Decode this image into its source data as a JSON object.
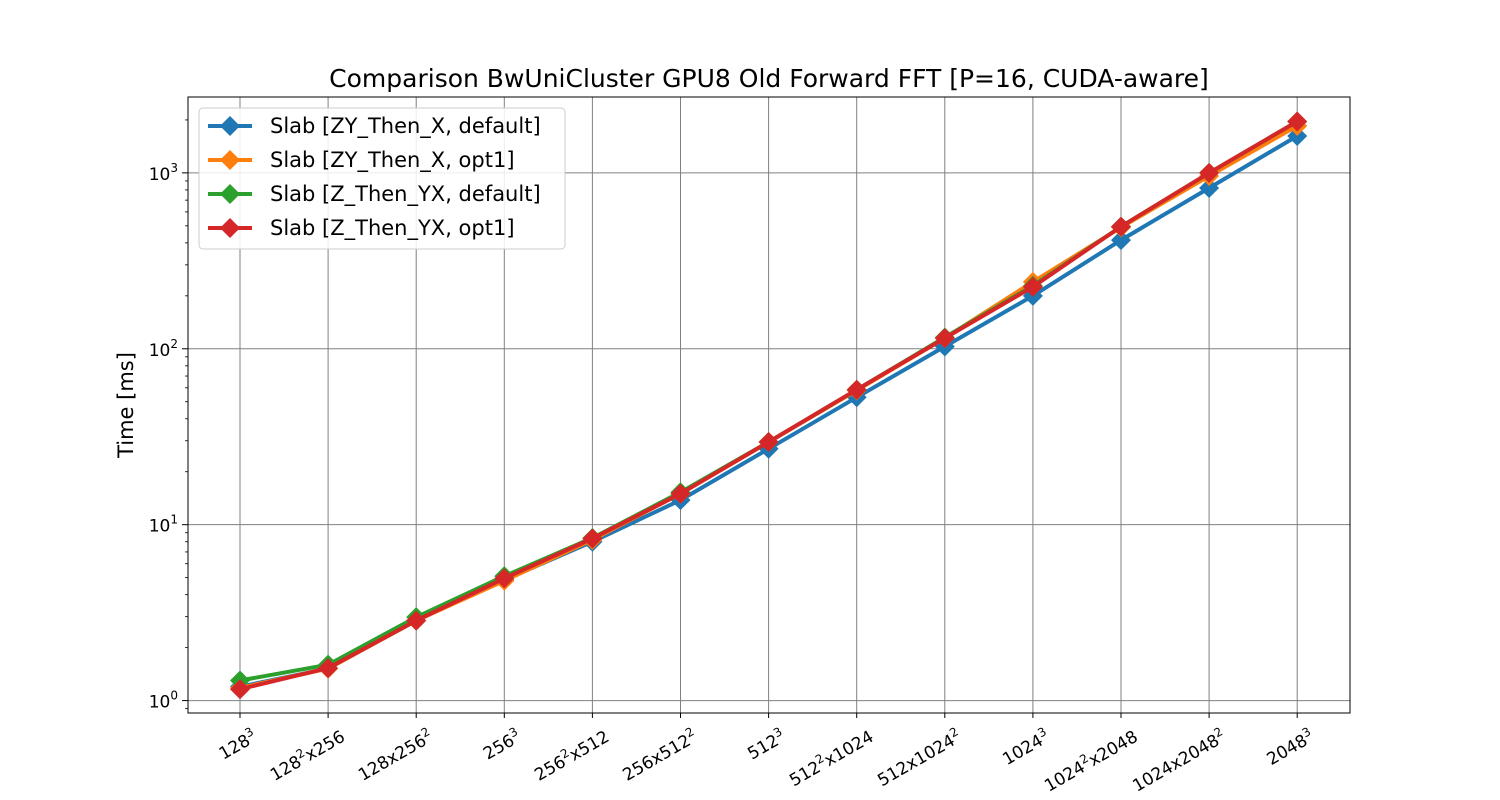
{
  "chart_data": {
    "type": "line",
    "title": "Comparison BwUniCluster GPU8 Old Forward FFT [P=16, CUDA-aware]",
    "xlabel": "",
    "ylabel": "Time [ms]",
    "yscale": "log",
    "ylim": [
      0.85,
      2700
    ],
    "grid": true,
    "legend_position": "top-left",
    "y_ticks": [
      {
        "base": "10",
        "exp": "0",
        "value": 1
      },
      {
        "base": "10",
        "exp": "1",
        "value": 10
      },
      {
        "base": "10",
        "exp": "2",
        "value": 100
      },
      {
        "base": "10",
        "exp": "3",
        "value": 1000
      }
    ],
    "categories": [
      {
        "base": "128",
        "sup": "3",
        "rest": ""
      },
      {
        "base": "128",
        "sup": "2",
        "rest": "x256"
      },
      {
        "base": "128x256",
        "sup": "2",
        "rest": ""
      },
      {
        "base": "256",
        "sup": "3",
        "rest": ""
      },
      {
        "base": "256",
        "sup": "2",
        "rest": "x512"
      },
      {
        "base": "256x512",
        "sup": "2",
        "rest": ""
      },
      {
        "base": "512",
        "sup": "3",
        "rest": ""
      },
      {
        "base": "512",
        "sup": "2",
        "rest": "x1024"
      },
      {
        "base": "512x1024",
        "sup": "2",
        "rest": ""
      },
      {
        "base": "1024",
        "sup": "3",
        "rest": ""
      },
      {
        "base": "1024",
        "sup": "2",
        "rest": "x2048"
      },
      {
        "base": "1024x2048",
        "sup": "2",
        "rest": ""
      },
      {
        "base": "2048",
        "sup": "3",
        "rest": ""
      }
    ],
    "series": [
      {
        "name": "Slab [ZY_Then_X, default]",
        "color": "#1f77b4",
        "values": [
          1.2,
          1.52,
          2.85,
          4.85,
          8.0,
          13.8,
          27,
          53,
          103,
          200,
          415,
          820,
          1620
        ]
      },
      {
        "name": "Slab [ZY_Then_X, opt1]",
        "color": "#ff7f0e",
        "values": [
          1.18,
          1.52,
          2.85,
          4.8,
          8.2,
          15.0,
          29.5,
          58,
          115,
          240,
          490,
          960,
          1850
        ]
      },
      {
        "name": "Slab [Z_Then_YX, default]",
        "color": "#2ca02c",
        "values": [
          1.3,
          1.6,
          2.98,
          5.1,
          8.4,
          15.3,
          29.5,
          58.5,
          116,
          228,
          495,
          1000,
          1960
        ]
      },
      {
        "name": "Slab [Z_Then_YX, opt1]",
        "color": "#d62728",
        "values": [
          1.16,
          1.53,
          2.85,
          4.95,
          8.35,
          15.0,
          29.5,
          58.5,
          115,
          225,
          495,
          1000,
          1960
        ]
      }
    ]
  }
}
